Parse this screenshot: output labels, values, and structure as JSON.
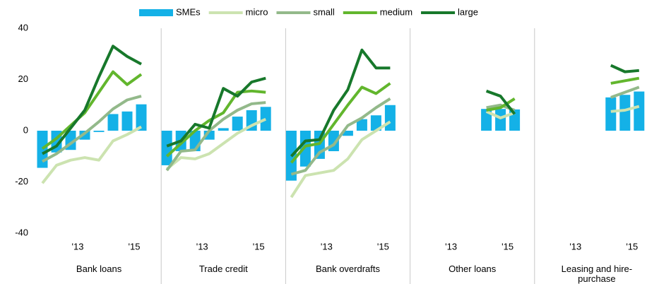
{
  "chart_data": {
    "type": "combo",
    "panels": [
      "Bank loans",
      "Trade credit",
      "Bank overdrafts",
      "Other loans",
      "Leasing and hire-purchase"
    ],
    "categories": [
      null,
      null,
      "'13",
      null,
      null,
      null,
      "'15",
      null
    ],
    "ylim": [
      -40,
      40
    ],
    "yticks": [
      -40,
      -20,
      0,
      20,
      40
    ],
    "grid": false,
    "legend": "top",
    "series": [
      {
        "name": "SMEs",
        "kind": "bar",
        "color": "#14b1e7",
        "values": [
          [
            -14.5,
            -8.5,
            -7.5,
            -3.5,
            -0.5,
            6.5,
            7.5,
            10.3
          ],
          [
            -13.5,
            -8,
            -8,
            -3.5,
            1,
            5.5,
            8,
            9.3
          ],
          [
            -19.5,
            -14,
            -11,
            -8,
            -2,
            4.5,
            6,
            10
          ],
          [
            null,
            null,
            null,
            null,
            null,
            8.5,
            8.5,
            8.3
          ],
          [
            null,
            null,
            null,
            null,
            null,
            13,
            14,
            15.3
          ]
        ]
      },
      {
        "name": "micro",
        "kind": "line",
        "color": "#cce3b0",
        "values": [
          [
            -20.5,
            -13.5,
            -11.5,
            -10.5,
            -11.5,
            -4,
            -1.5,
            1.5
          ],
          [
            -15,
            -10.5,
            -11,
            -9,
            -5,
            -1,
            2,
            4.5
          ],
          [
            -26,
            -17.5,
            -16.5,
            -15.5,
            -11,
            -3.5,
            0,
            3.5
          ],
          [
            null,
            null,
            null,
            null,
            null,
            7.5,
            5,
            7
          ],
          [
            null,
            null,
            null,
            null,
            null,
            7.5,
            8,
            9.5
          ]
        ]
      },
      {
        "name": "small",
        "kind": "line",
        "color": "#93b98a",
        "values": [
          [
            -12,
            -9,
            -5,
            -1,
            3.5,
            8.5,
            12,
            13.5
          ],
          [
            -15.5,
            -8,
            -7.5,
            0,
            4.5,
            8,
            10.5,
            11
          ],
          [
            -17,
            -15.5,
            -8.5,
            -5.5,
            2,
            5,
            9,
            12.5
          ],
          [
            null,
            null,
            null,
            null,
            null,
            9,
            10,
            8
          ],
          [
            null,
            null,
            null,
            null,
            null,
            13,
            15,
            17
          ]
        ]
      },
      {
        "name": "medium",
        "kind": "line",
        "color": "#62b62d",
        "values": [
          [
            -7,
            -3,
            2,
            7,
            15,
            23,
            18,
            22
          ],
          [
            -10,
            -5,
            0,
            4,
            7,
            15,
            15.5,
            15
          ],
          [
            -12.5,
            -6,
            -5,
            2.5,
            10,
            17,
            14.5,
            18.5
          ],
          [
            null,
            null,
            null,
            null,
            null,
            8,
            9,
            12.5
          ],
          [
            null,
            null,
            null,
            null,
            null,
            18.5,
            19.5,
            20.5
          ]
        ]
      },
      {
        "name": "large",
        "kind": "line",
        "color": "#17782b",
        "values": [
          [
            -9,
            -6,
            1,
            8,
            21,
            33,
            29,
            26
          ],
          [
            -6,
            -4,
            2.5,
            1,
            16.5,
            13.5,
            19,
            20.5
          ],
          [
            -10,
            -4,
            -3.5,
            8,
            16,
            31.5,
            24.5,
            24.5
          ],
          [
            null,
            null,
            null,
            null,
            null,
            15.5,
            13.5,
            6.5
          ],
          [
            null,
            null,
            null,
            null,
            null,
            25.5,
            23,
            23.5
          ]
        ]
      }
    ]
  }
}
